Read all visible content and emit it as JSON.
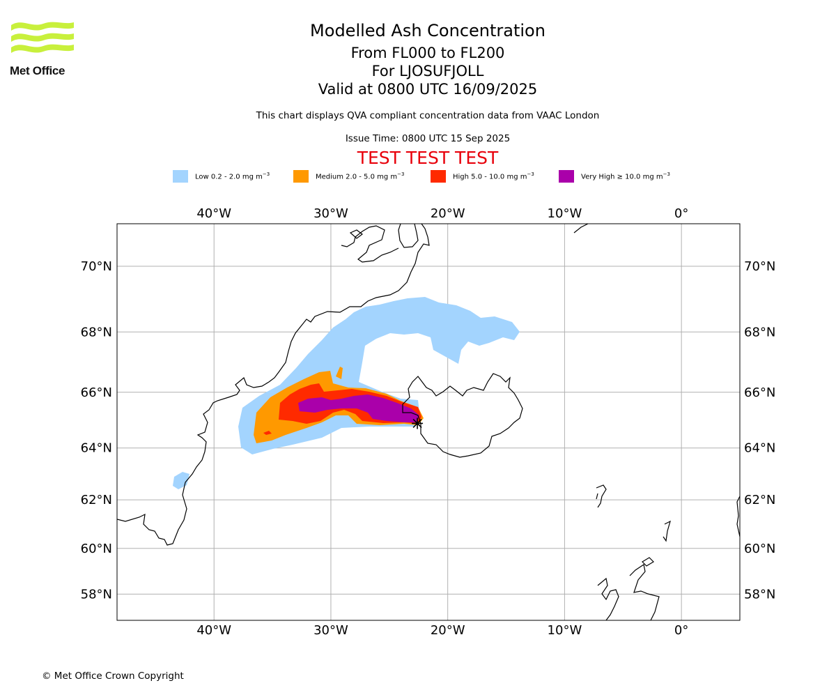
{
  "header": {
    "logo_text": "Met Office",
    "title": "Modelled Ash Concentration",
    "subtitle_levels": "From FL000 to FL200",
    "subtitle_volcano": "For LJOSUFJOLL",
    "subtitle_valid": "Valid at 0800 UTC 16/09/2025",
    "description": "This chart displays QVA compliant concentration data from VAAC London",
    "issue_time": "Issue Time: 0800 UTC 15 Sep 2025",
    "test_banner": "TEST TEST TEST"
  },
  "legend": [
    {
      "name": "Low",
      "label": "Low 0.2 - 2.0 mg m",
      "color": "#a3d4fe"
    },
    {
      "name": "Medium",
      "label": "Medium 2.0 - 5.0 mg m",
      "color": "#ff9900"
    },
    {
      "name": "High",
      "label": "High 5.0 - 10.0 mg m",
      "color": "#ff2a00"
    },
    {
      "name": "Very High",
      "label": "Very High ≥ 10.0 mg m",
      "color": "#aa00aa"
    }
  ],
  "legend_unit_exponent": "−3",
  "map": {
    "projection": "mercator",
    "lon_range": [
      -48.3,
      5.0
    ],
    "lat_range": [
      56.8,
      71.2
    ],
    "lon_ticks": [
      {
        "lon": -40,
        "label": "40°W"
      },
      {
        "lon": -30,
        "label": "30°W"
      },
      {
        "lon": -20,
        "label": "20°W"
      },
      {
        "lon": -10,
        "label": "10°W"
      },
      {
        "lon": 0,
        "label": "0°"
      }
    ],
    "lat_ticks": [
      {
        "lat": 70,
        "label": "70°N"
      },
      {
        "lat": 68,
        "label": "68°N"
      },
      {
        "lat": 66,
        "label": "66°N"
      },
      {
        "lat": 64,
        "label": "64°N"
      },
      {
        "lat": 62,
        "label": "62°N"
      },
      {
        "lat": 60,
        "label": "60°N"
      },
      {
        "lat": 58,
        "label": "58°N"
      }
    ],
    "volcano_location": {
      "lon": -22.6,
      "lat": 64.9
    },
    "grid_color": "#b0b0b0"
  },
  "footer": {
    "copyright": "© Met Office Crown Copyright"
  }
}
